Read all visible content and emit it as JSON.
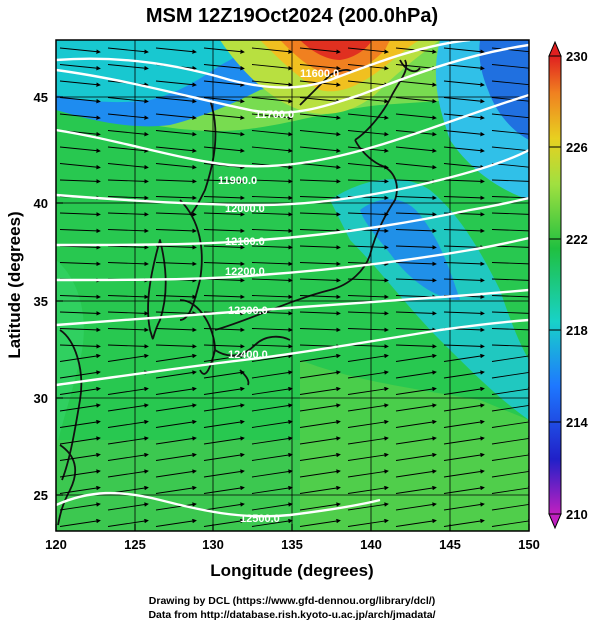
{
  "title": "MSM 12Z19Oct2024 (200.0hPa)",
  "xlabel": "Longitude (degrees)",
  "ylabel": "Latitude  (degrees)",
  "x_ticks": [
    "120",
    "125",
    "130",
    "135",
    "140",
    "145",
    "150"
  ],
  "y_ticks": [
    "25",
    "30",
    "35",
    "40",
    "45"
  ],
  "colorbar_ticks": [
    "230",
    "226",
    "222",
    "218",
    "214",
    "210"
  ],
  "contour_labels": [
    "11600.0",
    "11700.0",
    "11900.0",
    "12000.0",
    "12100.0",
    "12200.0",
    "12300.0",
    "12400.0",
    "12500.0"
  ],
  "footer": {
    "line1": "Drawing by DCL (https://www.gfd-dennou.org/library/dcl/)",
    "line2": "Data from http://database.rish.kyoto-u.ac.jp/arch/jmadata/"
  },
  "chart_data": {
    "type": "heatmap",
    "field": "temperature (shaded) with geopotential height contours and wind streamlines",
    "xlim": [
      120,
      150
    ],
    "ylim": [
      22.5,
      48
    ],
    "colorbar_range": [
      210,
      230
    ],
    "contour_levels": [
      11600,
      11700,
      11900,
      12000,
      12100,
      12200,
      12300,
      12400,
      12500
    ],
    "flow": "westerly, strongest near 33N-37N",
    "colormap": [
      "#c020c0",
      "#2020c8",
      "#1e78ff",
      "#18d2c8",
      "#20c040",
      "#a0e040",
      "#e8d020",
      "#f08020",
      "#e02020"
    ]
  }
}
